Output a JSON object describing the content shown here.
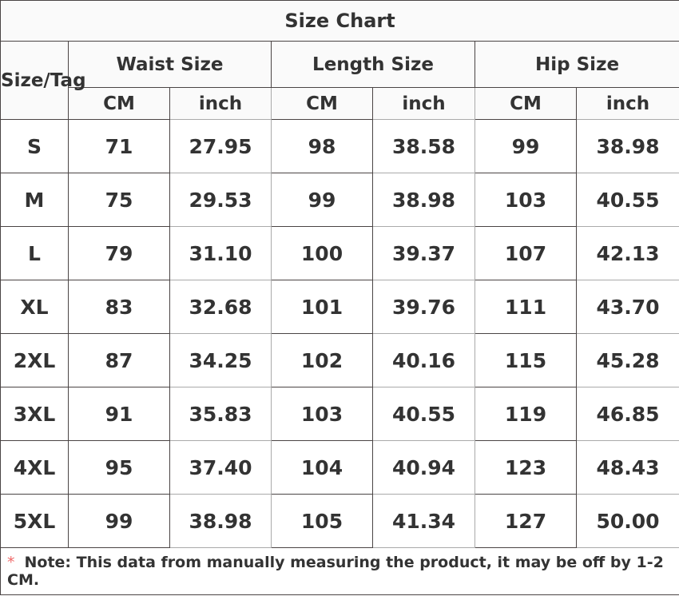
{
  "title": "Size Chart",
  "size_tag_label": "Size/Tag",
  "groups": [
    "Waist Size",
    "Length Size",
    "Hip Size"
  ],
  "units": [
    "CM",
    "inch",
    "CM",
    "inch",
    "CM",
    "inch"
  ],
  "rows": [
    [
      "S",
      "71",
      "27.95",
      "98",
      "38.58",
      "99",
      "38.98"
    ],
    [
      "M",
      "75",
      "29.53",
      "99",
      "38.98",
      "103",
      "40.55"
    ],
    [
      "L",
      "79",
      "31.10",
      "100",
      "39.37",
      "107",
      "42.13"
    ],
    [
      "XL",
      "83",
      "32.68",
      "101",
      "39.76",
      "111",
      "43.70"
    ],
    [
      "2XL",
      "87",
      "34.25",
      "102",
      "40.16",
      "115",
      "45.28"
    ],
    [
      "3XL",
      "91",
      "35.83",
      "103",
      "40.55",
      "119",
      "46.85"
    ],
    [
      "4XL",
      "95",
      "37.40",
      "104",
      "40.94",
      "123",
      "48.43"
    ],
    [
      "5XL",
      "99",
      "38.98",
      "105",
      "41.34",
      "127",
      "50.00"
    ]
  ],
  "note": {
    "marker": "*",
    "text": "Note: This data from manually measuring the product, it may be off by 1-2 CM."
  },
  "colors": {
    "text": "#333333",
    "border": "#4a4444",
    "header_bg": "#fafafa",
    "asterisk": "#f06a6a"
  }
}
